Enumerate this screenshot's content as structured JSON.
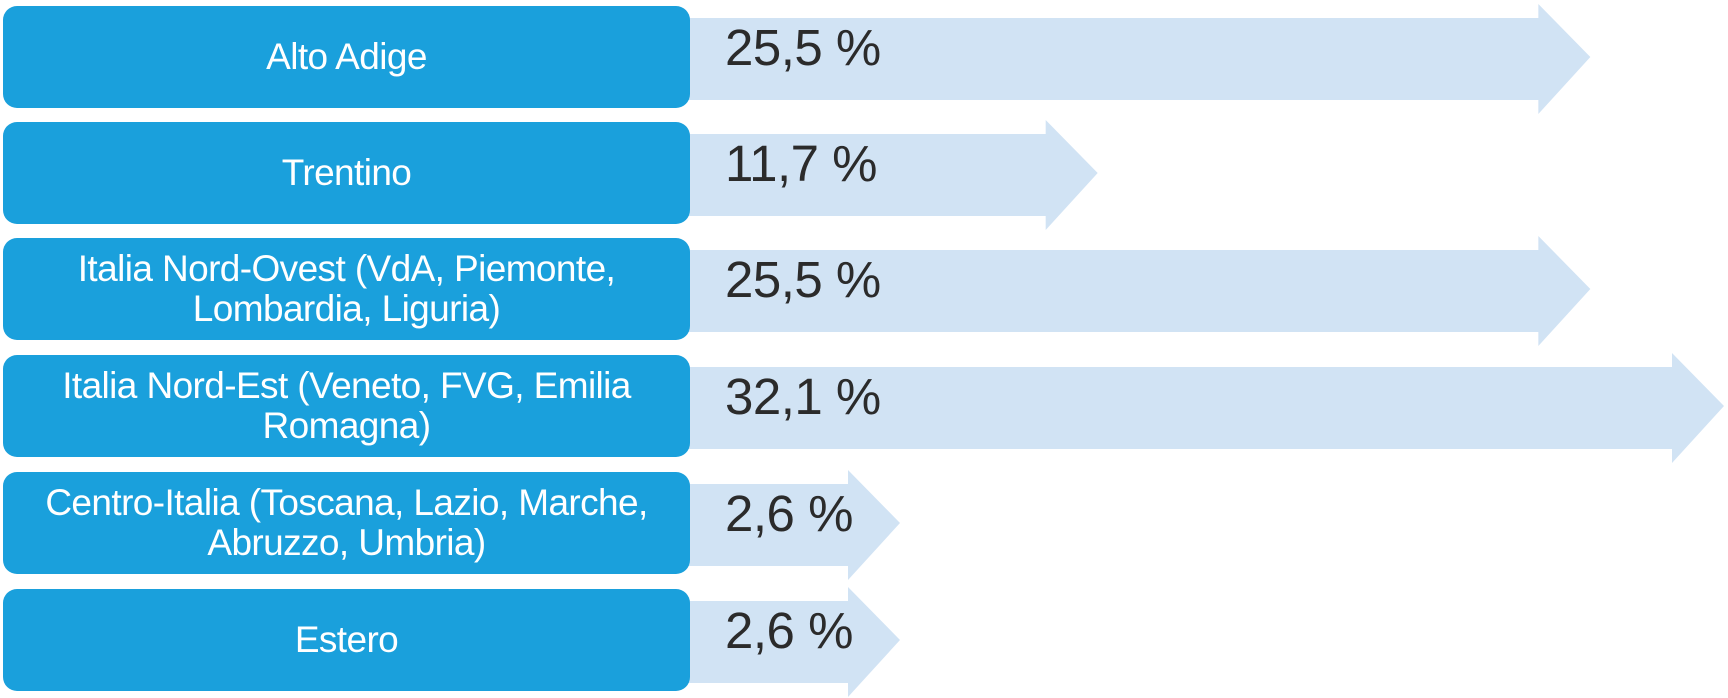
{
  "chart_data": {
    "type": "bar",
    "orientation": "horizontal",
    "categories": [
      "Alto Adige",
      "Trentino",
      "Italia Nord-Ovest (VdA, Piemonte, Lombardia, Liguria)",
      "Italia Nord-Est (Veneto, FVG, Emilia Romagna)",
      "Centro-Italia (Toscana, Lazio, Marche, Abruzzo, Umbria)",
      "Estero"
    ],
    "values": [
      25.5,
      11.7,
      25.5,
      32.1,
      2.6,
      2.6
    ],
    "value_labels": [
      "25,5 %",
      "11,7 %",
      "25,5 %",
      "32,1 %",
      "2,6 %",
      "2,6 %"
    ],
    "unit": "%",
    "title": "",
    "xlabel": "",
    "ylabel": "",
    "grid": false,
    "legend": "none"
  },
  "colors": {
    "label_box": "#1aa0dc",
    "label_text": "#ffffff",
    "arrow": "#d1e3f4",
    "value_text": "#2b2b2b"
  }
}
